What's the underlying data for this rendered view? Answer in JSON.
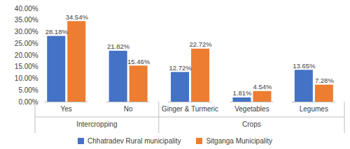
{
  "chart_data": {
    "type": "bar",
    "categories": [
      "Yes",
      "No",
      "Ginger & Turmeric",
      "Vegetables",
      "Legumes"
    ],
    "category_groups": [
      "Intercropping",
      "Intercropping",
      "Crops",
      "Crops",
      "Crops"
    ],
    "series": [
      {
        "name": "Chhatradev Rural municipality",
        "color": "#4472c4",
        "values": [
          28.18,
          21.82,
          12.72,
          1.81,
          13.65
        ],
        "value_labels": [
          "28.18%",
          "21.82%",
          "12.72%",
          "1.81%",
          "13.65%"
        ]
      },
      {
        "name": "Sitganga Municipality",
        "color": "#ed7d31",
        "values": [
          34.54,
          15.46,
          22.72,
          4.54,
          7.28
        ],
        "value_labels": [
          "34.54%",
          "15.46%",
          "22.72%",
          "4.54%",
          "7.28%"
        ]
      }
    ],
    "ylim": [
      0,
      40
    ],
    "yticks": [
      {
        "value": 0,
        "label": "0.00%"
      },
      {
        "value": 5,
        "label": "5.00%"
      },
      {
        "value": 10,
        "label": "10.00%"
      },
      {
        "value": 15,
        "label": "15.00%"
      },
      {
        "value": 20,
        "label": "20.00%"
      },
      {
        "value": 25,
        "label": "25.00%"
      },
      {
        "value": 30,
        "label": "30.00%"
      },
      {
        "value": 35,
        "label": "35.00%"
      },
      {
        "value": 40,
        "label": "40.00%"
      }
    ],
    "grid": false,
    "data_labels": true,
    "legend": "bottom"
  }
}
